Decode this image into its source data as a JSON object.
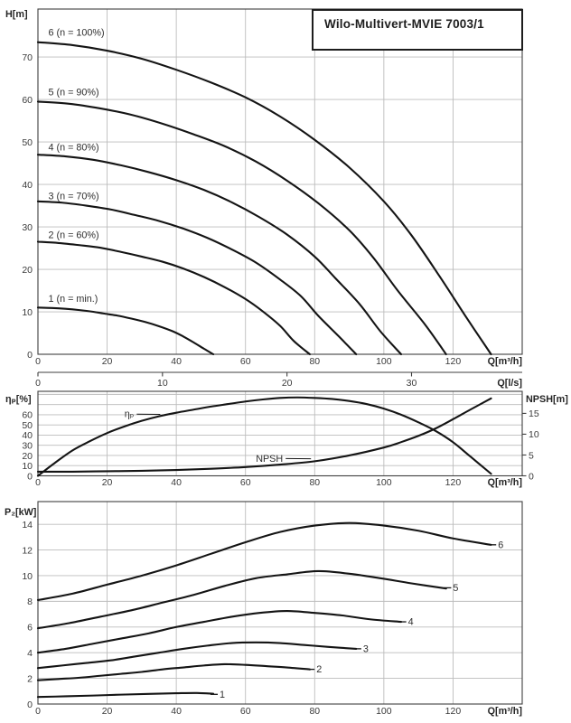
{
  "title": "Wilo-Multivert-MVIE 7003/1",
  "chart_data": [
    {
      "id": "head-flow",
      "type": "line",
      "xlabel": "Q[m³/h]",
      "ylabel": "H[m]",
      "xlim": [
        0,
        140
      ],
      "ylim": [
        0,
        81.3
      ],
      "xticks": [
        0,
        20,
        40,
        60,
        80,
        100,
        120
      ],
      "yticks": [
        0,
        10,
        20,
        30,
        40,
        50,
        60,
        70
      ],
      "grid": "on",
      "legend_position": "inline-labels",
      "secondary_xaxis": {
        "label": "Q[l/s]",
        "ticks": [
          0,
          10,
          20,
          30
        ],
        "scale_to_primary": 3.6
      },
      "series": [
        {
          "name": "6 (n = 100%)",
          "label": {
            "text": "6 (n = 100%)",
            "q": 3,
            "v": 75
          },
          "points": [
            [
              0,
              73.5
            ],
            [
              10,
              72.8
            ],
            [
              20,
              71.5
            ],
            [
              30,
              69.6
            ],
            [
              40,
              67
            ],
            [
              50,
              64
            ],
            [
              60,
              60.5
            ],
            [
              70,
              56
            ],
            [
              80,
              50.5
            ],
            [
              90,
              44
            ],
            [
              100,
              36
            ],
            [
              108,
              28
            ],
            [
              116,
              18.5
            ],
            [
              124,
              8.5
            ],
            [
              131,
              0
            ]
          ]
        },
        {
          "name": "5 (n = 90%)",
          "label": {
            "text": "5 (n = 90%)",
            "q": 3,
            "v": 61
          },
          "points": [
            [
              0,
              59.5
            ],
            [
              9,
              59
            ],
            [
              18,
              57.9
            ],
            [
              27,
              56.4
            ],
            [
              36,
              54.3
            ],
            [
              45,
              51.8
            ],
            [
              54,
              49
            ],
            [
              63,
              45.4
            ],
            [
              72,
              40.9
            ],
            [
              81,
              35.6
            ],
            [
              90,
              29.2
            ],
            [
              97,
              22.7
            ],
            [
              104,
              15
            ],
            [
              112,
              6.9
            ],
            [
              118,
              0
            ]
          ]
        },
        {
          "name": "4 (n = 80%)",
          "label": {
            "text": "4 (n = 80%)",
            "q": 3,
            "v": 48
          },
          "points": [
            [
              0,
              47
            ],
            [
              8,
              46.6
            ],
            [
              16,
              45.8
            ],
            [
              24,
              44.5
            ],
            [
              32,
              42.9
            ],
            [
              40,
              41
            ],
            [
              48,
              38.7
            ],
            [
              56,
              35.8
            ],
            [
              64,
              32.3
            ],
            [
              72,
              28.2
            ],
            [
              80,
              23
            ],
            [
              86,
              17.9
            ],
            [
              93,
              11.8
            ],
            [
              99,
              5.4
            ],
            [
              105,
              0
            ]
          ]
        },
        {
          "name": "3 (n = 70%)",
          "label": {
            "text": "3 (n = 70%)",
            "q": 3,
            "v": 36.5
          },
          "points": [
            [
              0,
              36
            ],
            [
              7,
              35.7
            ],
            [
              14,
              35
            ],
            [
              21,
              34.1
            ],
            [
              28,
              32.8
            ],
            [
              35,
              31.4
            ],
            [
              42,
              29.6
            ],
            [
              49,
              27.4
            ],
            [
              56,
              24.7
            ],
            [
              63,
              21.6
            ],
            [
              70,
              17.6
            ],
            [
              76,
              13.7
            ],
            [
              81,
              9.1
            ],
            [
              87,
              4.2
            ],
            [
              92,
              0
            ]
          ]
        },
        {
          "name": "2 (n = 60%)",
          "label": {
            "text": "2 (n = 60%)",
            "q": 3,
            "v": 27.3
          },
          "points": [
            [
              0,
              26.5
            ],
            [
              6,
              26.2
            ],
            [
              12,
              25.7
            ],
            [
              18,
              25.1
            ],
            [
              24,
              24.1
            ],
            [
              30,
              23
            ],
            [
              36,
              21.8
            ],
            [
              42,
              20.2
            ],
            [
              48,
              18.2
            ],
            [
              54,
              15.8
            ],
            [
              60,
              13
            ],
            [
              65,
              10.1
            ],
            [
              70,
              6.7
            ],
            [
              74,
              3.1
            ],
            [
              78.6,
              0
            ]
          ]
        },
        {
          "name": "1 (n = min.)",
          "label": {
            "text": "1 (n = min.)",
            "q": 3,
            "v": 12.3
          },
          "points": [
            [
              0,
              11
            ],
            [
              4,
              10.9
            ],
            [
              8,
              10.7
            ],
            [
              12,
              10.4
            ],
            [
              16,
              10
            ],
            [
              19,
              9.6
            ],
            [
              23,
              9.1
            ],
            [
              27,
              8.4
            ],
            [
              31,
              7.6
            ],
            [
              35,
              6.6
            ],
            [
              39,
              5.4
            ],
            [
              42,
              4.2
            ],
            [
              45,
              2.8
            ],
            [
              48,
              1.3
            ],
            [
              50.7,
              0
            ]
          ]
        }
      ]
    },
    {
      "id": "efficiency-npsh",
      "type": "line",
      "xlabel": "Q[m³/h]",
      "ylabel_left": "ηₚ[%]",
      "ylabel_right": "NPSH[m]",
      "xlim": [
        0,
        140
      ],
      "ylim_left": [
        0,
        83
      ],
      "ylim_right": [
        0,
        20.3
      ],
      "xticks": [
        0,
        20,
        40,
        60,
        80,
        100,
        120
      ],
      "yticks_left": [
        0,
        10,
        20,
        30,
        40,
        50,
        60
      ],
      "ygrid_left": [
        10,
        20,
        30,
        40,
        50,
        60,
        70,
        80
      ],
      "yticks_right": [
        0,
        5,
        10,
        15
      ],
      "grid": "on",
      "series": [
        {
          "name": "ηₚ",
          "axis": "left",
          "label": {
            "text": "ηₚ",
            "q": 25,
            "v": 57.5,
            "leader": 26
          },
          "points": [
            [
              0,
              0
            ],
            [
              5,
              13
            ],
            [
              10,
              25
            ],
            [
              15,
              34
            ],
            [
              20,
              42
            ],
            [
              25,
              48.5
            ],
            [
              30,
              54
            ],
            [
              35,
              58.5
            ],
            [
              40,
              62
            ],
            [
              45,
              65
            ],
            [
              50,
              68
            ],
            [
              55,
              70.5
            ],
            [
              60,
              73
            ],
            [
              65,
              75
            ],
            [
              70,
              76.5
            ],
            [
              75,
              77
            ],
            [
              80,
              76.5
            ],
            [
              85,
              75.5
            ],
            [
              90,
              73.5
            ],
            [
              95,
              70.5
            ],
            [
              100,
              66
            ],
            [
              105,
              60
            ],
            [
              110,
              52.5
            ],
            [
              115,
              44
            ],
            [
              120,
              33
            ],
            [
              125,
              19
            ],
            [
              131,
              2
            ]
          ]
        },
        {
          "name": "NPSH",
          "axis": "right",
          "label": {
            "text": "NPSH",
            "q": 63,
            "v": 3.4,
            "leader": 28
          },
          "points": [
            [
              0,
              1
            ],
            [
              10,
              1
            ],
            [
              20,
              1.1
            ],
            [
              30,
              1.2
            ],
            [
              40,
              1.4
            ],
            [
              50,
              1.7
            ],
            [
              60,
              2.1
            ],
            [
              70,
              2.7
            ],
            [
              80,
              3.5
            ],
            [
              90,
              4.9
            ],
            [
              100,
              6.8
            ],
            [
              105,
              8.1
            ],
            [
              110,
              9.6
            ],
            [
              115,
              11.4
            ],
            [
              120,
              13.6
            ],
            [
              125,
              15.9
            ],
            [
              131,
              18.6
            ]
          ]
        }
      ]
    },
    {
      "id": "power-flow",
      "type": "line",
      "xlabel": "Q[m³/h]",
      "ylabel": "P₂[kW]",
      "xlim": [
        0,
        140
      ],
      "ylim": [
        0,
        15.77
      ],
      "xticks": [
        0,
        20,
        40,
        60,
        80,
        100,
        120
      ],
      "yticks": [
        0,
        2,
        4,
        6,
        8,
        10,
        12,
        14
      ],
      "grid": "on",
      "series": [
        {
          "name": "6",
          "label": {
            "text": "6",
            "q": 133,
            "v": 12.15,
            "end_leader": true
          },
          "points": [
            [
              0,
              8.1
            ],
            [
              10,
              8.6
            ],
            [
              20,
              9.3
            ],
            [
              30,
              10
            ],
            [
              40,
              10.8
            ],
            [
              50,
              11.7
            ],
            [
              60,
              12.6
            ],
            [
              70,
              13.4
            ],
            [
              80,
              13.9
            ],
            [
              90,
              14.1
            ],
            [
              100,
              13.9
            ],
            [
              110,
              13.5
            ],
            [
              120,
              12.9
            ],
            [
              131,
              12.4
            ]
          ]
        },
        {
          "name": "5",
          "label": {
            "text": "5",
            "q": 120,
            "v": 8.8,
            "end_leader": true
          },
          "points": [
            [
              0,
              5.9
            ],
            [
              9,
              6.3
            ],
            [
              18,
              6.8
            ],
            [
              27,
              7.3
            ],
            [
              36,
              7.9
            ],
            [
              45,
              8.5
            ],
            [
              54,
              9.2
            ],
            [
              63,
              9.8
            ],
            [
              72,
              10.1
            ],
            [
              81,
              10.35
            ],
            [
              90,
              10.15
            ],
            [
              99,
              9.8
            ],
            [
              108,
              9.4
            ],
            [
              118,
              9
            ]
          ]
        },
        {
          "name": "4",
          "label": {
            "text": "4",
            "q": 107,
            "v": 6.15,
            "end_leader": true
          },
          "points": [
            [
              0,
              4
            ],
            [
              8,
              4.3
            ],
            [
              16,
              4.7
            ],
            [
              24,
              5.1
            ],
            [
              32,
              5.5
            ],
            [
              40,
              6
            ],
            [
              48,
              6.4
            ],
            [
              56,
              6.8
            ],
            [
              64,
              7.1
            ],
            [
              72,
              7.25
            ],
            [
              80,
              7.1
            ],
            [
              88,
              6.9
            ],
            [
              96,
              6.6
            ],
            [
              105,
              6.4
            ]
          ]
        },
        {
          "name": "3",
          "label": {
            "text": "3",
            "q": 94,
            "v": 4.05,
            "end_leader": true
          },
          "points": [
            [
              0,
              2.8
            ],
            [
              7,
              3
            ],
            [
              14,
              3.2
            ],
            [
              21,
              3.4
            ],
            [
              28,
              3.7
            ],
            [
              35,
              4
            ],
            [
              42,
              4.3
            ],
            [
              49,
              4.55
            ],
            [
              56,
              4.75
            ],
            [
              63,
              4.8
            ],
            [
              70,
              4.75
            ],
            [
              77,
              4.6
            ],
            [
              84,
              4.45
            ],
            [
              92,
              4.3
            ]
          ]
        },
        {
          "name": "2",
          "label": {
            "text": "2",
            "q": 80.5,
            "v": 2.45,
            "end_leader": true
          },
          "points": [
            [
              0,
              1.85
            ],
            [
              6,
              1.95
            ],
            [
              12,
              2.05
            ],
            [
              18,
              2.2
            ],
            [
              24,
              2.35
            ],
            [
              30,
              2.5
            ],
            [
              36,
              2.7
            ],
            [
              42,
              2.85
            ],
            [
              48,
              3
            ],
            [
              54,
              3.1
            ],
            [
              60,
              3.05
            ],
            [
              66,
              2.95
            ],
            [
              72,
              2.85
            ],
            [
              78.6,
              2.7
            ]
          ]
        },
        {
          "name": "1",
          "label": {
            "text": "1",
            "q": 52.5,
            "v": 0.5,
            "end_leader": true
          },
          "points": [
            [
              0,
              0.55
            ],
            [
              8,
              0.6
            ],
            [
              16,
              0.66
            ],
            [
              24,
              0.73
            ],
            [
              32,
              0.79
            ],
            [
              40,
              0.84
            ],
            [
              46,
              0.86
            ],
            [
              50.7,
              0.8
            ]
          ]
        }
      ]
    }
  ]
}
